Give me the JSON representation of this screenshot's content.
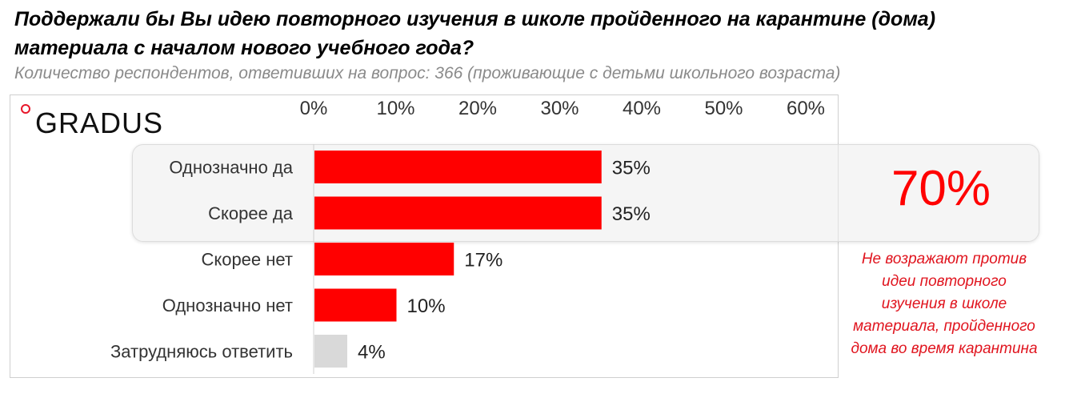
{
  "title": "Поддержали бы Вы идею повторного изучения в школе пройденного на карантине (дома) материала с началом нового учебного года?",
  "subtitle": "Количество респондентов, ответивших на вопрос: 366 (проживающие с детьми школьного возраста)",
  "logo": {
    "text": "GRADUS",
    "accent_color": "#e8172a"
  },
  "summary": {
    "value": "70%",
    "note": "Не возражают против идеи повторного изучения в школе материала, пройденного дома во время карантина",
    "color": "#ff0000"
  },
  "chart_data": {
    "type": "bar",
    "orientation": "horizontal",
    "categories": [
      "Однозначно да",
      "Скорее да",
      "Скорее нет",
      "Однозначно нет",
      "Затрудняюсь ответить"
    ],
    "values": [
      35,
      35,
      17,
      10,
      4
    ],
    "value_labels": [
      "35%",
      "35%",
      "17%",
      "10%",
      "4%"
    ],
    "bar_colors": [
      "#ff0000",
      "#ff0000",
      "#ff0000",
      "#ff0000",
      "#d9d9d9"
    ],
    "xlim": [
      0,
      60
    ],
    "xticks": [
      0,
      10,
      20,
      30,
      40,
      50,
      60
    ],
    "xtick_labels": [
      "0%",
      "10%",
      "20%",
      "30%",
      "40%",
      "50%",
      "60%"
    ],
    "axis_position": "top",
    "grid": false
  }
}
